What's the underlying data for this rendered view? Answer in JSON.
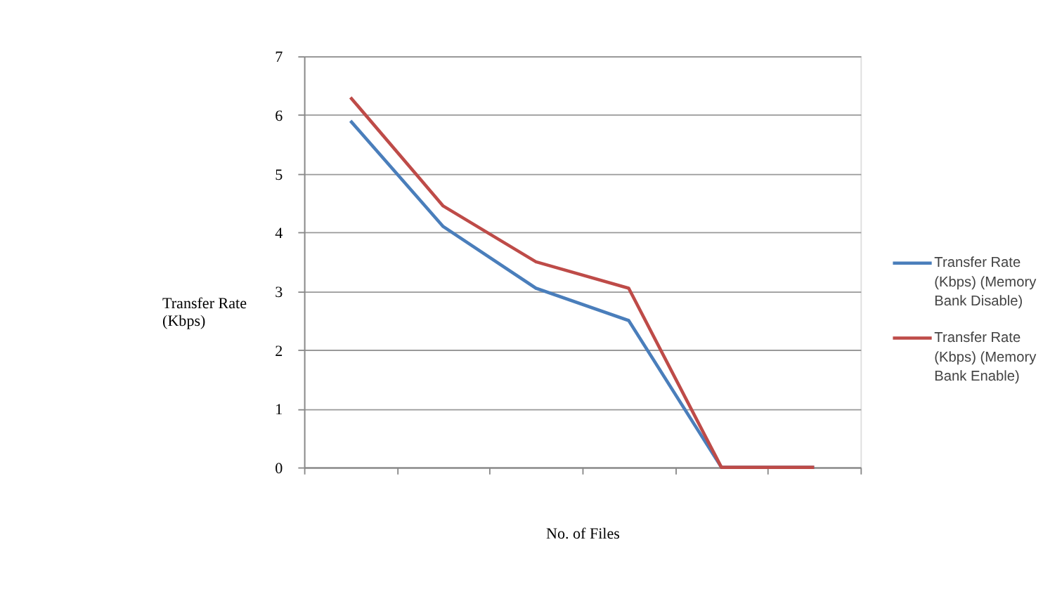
{
  "chart_data": {
    "type": "line",
    "xlabel": "No. of Files",
    "ylabel": "Transfer Rate (Kbps)",
    "categories": [
      null,
      null,
      null,
      null,
      null,
      null
    ],
    "series": [
      {
        "name": "Transfer Rate (Kbps) (Memory Bank Disable)",
        "color": "#4a7ebb",
        "values": [
          5.9,
          4.1,
          3.05,
          2.5,
          0,
          0
        ]
      },
      {
        "name": "Transfer Rate (Kbps) (Memory Bank Enable)",
        "color": "#be4b48",
        "values": [
          6.3,
          4.45,
          3.5,
          3.05,
          0,
          0
        ]
      }
    ],
    "ylim": [
      0,
      7
    ],
    "yticks": [
      0,
      1,
      2,
      3,
      4,
      5,
      6,
      7
    ],
    "grid": "y",
    "legend": "right",
    "tick_labels": "y",
    "marker": "none",
    "line_style": "solid"
  }
}
